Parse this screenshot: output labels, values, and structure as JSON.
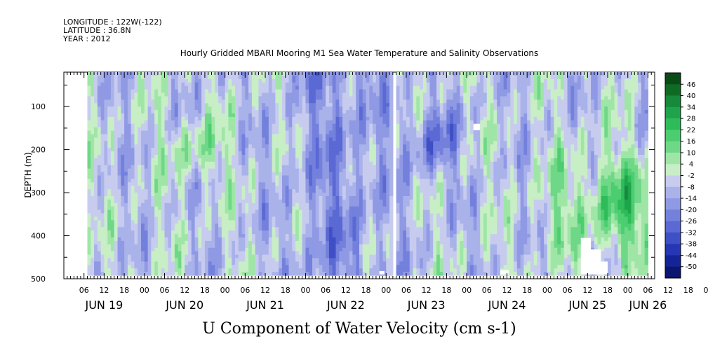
{
  "header": {
    "longitude": "LONGITUDE : 122W(-122)",
    "latitude": "LATITUDE : 36.8N",
    "year": "YEAR : 2012"
  },
  "chart_data": {
    "type": "heatmap",
    "title": "Hourly Gridded MBARI Mooring M1 Sea Water Temperature and Salinity Observations",
    "xlabel": "U Component of Water Velocity (cm s-1)",
    "ylabel": "DEPTH (m)",
    "x_range_hours": [
      0,
      176
    ],
    "y_range_m": [
      20,
      500
    ],
    "y_ticks": [
      100,
      200,
      300,
      400,
      500
    ],
    "hour_tick_labels": [
      "06",
      "12",
      "18",
      "00",
      "06",
      "12",
      "18",
      "00",
      "06",
      "12",
      "18",
      "00",
      "06",
      "12",
      "18",
      "00",
      "06",
      "12",
      "18",
      "00",
      "06",
      "12",
      "18",
      "00",
      "06",
      "12",
      "18",
      "00",
      "06",
      "12",
      "18",
      "00"
    ],
    "day_labels": [
      {
        "label": "JUN 19",
        "hour": 12
      },
      {
        "label": "JUN 20",
        "hour": 36
      },
      {
        "label": "JUN 21",
        "hour": 60
      },
      {
        "label": "JUN 22",
        "hour": 84
      },
      {
        "label": "JUN 23",
        "hour": 108
      },
      {
        "label": "JUN 24",
        "hour": 132
      },
      {
        "label": "JUN 25",
        "hour": 156
      },
      {
        "label": "JUN 26",
        "hour": 174
      }
    ],
    "colorbar_levels": [
      "46",
      "40",
      "34",
      "28",
      "22",
      "16",
      "10",
      "4",
      "-2",
      "-8",
      "-14",
      "-20",
      "-26",
      "-32",
      "-38",
      "-44",
      "-50"
    ],
    "colorbar_colors": [
      "#0a4a17",
      "#0f6b23",
      "#17893a",
      "#1fa44c",
      "#2ebc5b",
      "#4ccd70",
      "#6ed888",
      "#9fe6a6",
      "#c8eec6",
      "#c7ccef",
      "#aab2ea",
      "#8f99e4",
      "#7380dc",
      "#5a69d3",
      "#3f4fc6",
      "#2537b4",
      "#142498",
      "#0a1670"
    ],
    "data_extent_hours": [
      7,
      174
    ],
    "data_extent_depth_m": [
      20,
      490
    ],
    "missing_gap_hours": [
      97.5,
      99
    ]
  }
}
